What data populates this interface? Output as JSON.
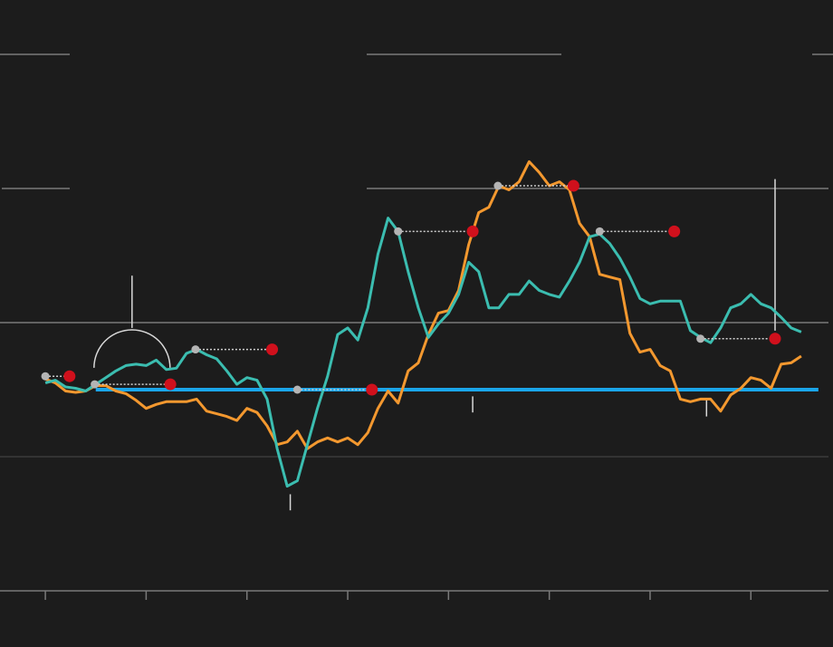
{
  "chart_data": {
    "type": "line",
    "xlim": [
      -4.5,
      77.7
    ],
    "ylim": [
      -1,
      3
    ],
    "xticks": [
      0,
      10,
      20,
      30,
      40,
      50,
      60,
      70
    ],
    "yticks": [
      -1,
      0,
      1,
      2,
      3
    ],
    "grid": true,
    "x": [
      0,
      1,
      2,
      3,
      4,
      5,
      6,
      7,
      8,
      9,
      10,
      11,
      12,
      13,
      14,
      15,
      16,
      17,
      18,
      19,
      20,
      21,
      22,
      23,
      24,
      25,
      26,
      27,
      28,
      29,
      30,
      31,
      32,
      33,
      34,
      35,
      36,
      37,
      38,
      39,
      40,
      41,
      42,
      43,
      44,
      45,
      46,
      47,
      48,
      49,
      50,
      51,
      52,
      53,
      54,
      55,
      56,
      57,
      58,
      59,
      60,
      61,
      62,
      63,
      64,
      65,
      66,
      67,
      68,
      69,
      70,
      71,
      72,
      73,
      74,
      75
    ],
    "series": [
      {
        "color": "#f3982f",
        "values": [
          0.58,
          0.55,
          0.49,
          0.48,
          0.49,
          0.53,
          0.53,
          0.49,
          0.47,
          0.42,
          0.36,
          0.39,
          0.41,
          0.41,
          0.41,
          0.43,
          0.34,
          0.32,
          0.3,
          0.27,
          0.36,
          0.33,
          0.23,
          0.09,
          0.11,
          0.19,
          0.06,
          0.11,
          0.14,
          0.11,
          0.14,
          0.09,
          0.18,
          0.36,
          0.49,
          0.4,
          0.64,
          0.7,
          0.91,
          1.07,
          1.09,
          1.24,
          1.58,
          1.82,
          1.86,
          2.02,
          1.99,
          2.05,
          2.2,
          2.12,
          2.02,
          2.05,
          1.99,
          1.74,
          1.64,
          1.36,
          1.34,
          1.32,
          0.92,
          0.78,
          0.8,
          0.68,
          0.64,
          0.43,
          0.41,
          0.43,
          0.43,
          0.34,
          0.46,
          0.51,
          0.59,
          0.57,
          0.51,
          0.69,
          0.7,
          0.75
        ]
      },
      {
        "color": "#3bbdb0",
        "values": [
          0.55,
          0.57,
          0.52,
          0.51,
          0.49,
          0.54,
          0.59,
          0.64,
          0.68,
          0.69,
          0.68,
          0.72,
          0.65,
          0.66,
          0.77,
          0.8,
          0.76,
          0.73,
          0.64,
          0.54,
          0.59,
          0.57,
          0.43,
          0.06,
          -0.22,
          -0.18,
          0.09,
          0.36,
          0.6,
          0.91,
          0.96,
          0.87,
          1.11,
          1.51,
          1.78,
          1.68,
          1.38,
          1.11,
          0.89,
          0.99,
          1.07,
          1.21,
          1.45,
          1.38,
          1.11,
          1.11,
          1.21,
          1.21,
          1.31,
          1.24,
          1.21,
          1.19,
          1.31,
          1.45,
          1.64,
          1.66,
          1.59,
          1.48,
          1.34,
          1.18,
          1.14,
          1.16,
          1.16,
          1.16,
          0.94,
          0.89,
          0.85,
          0.96,
          1.11,
          1.14,
          1.21,
          1.14,
          1.11,
          1.04,
          0.96,
          0.93
        ]
      }
    ],
    "hline": {
      "y": 0.5,
      "x": [
        5,
        76.7
      ],
      "color": "#1aa6ea"
    },
    "pairs": [
      {
        "y": 0.6,
        "x": [
          0,
          2.4
        ]
      },
      {
        "y": 0.54,
        "x": [
          4.9,
          12.4
        ]
      },
      {
        "y": 0.8,
        "x": [
          14.9,
          22.5
        ]
      },
      {
        "y": 0.5,
        "x": [
          25,
          32.4
        ]
      },
      {
        "y": 1.68,
        "x": [
          35,
          42.4
        ]
      },
      {
        "y": 2.02,
        "x": [
          44.9,
          52.4
        ]
      },
      {
        "y": 1.68,
        "x": [
          55,
          62.4
        ]
      },
      {
        "y": 0.88,
        "x": [
          65,
          72.4
        ]
      }
    ],
    "pair_colors": [
      "#b4b4b4",
      "#d0101c"
    ],
    "callouts": [
      {
        "x": 8.6,
        "y": [
          0.96,
          1.35
        ],
        "arc": true
      },
      {
        "x": 24.3,
        "y": [
          -0.4,
          -0.28
        ]
      },
      {
        "x": 42.4,
        "y": [
          0.33,
          0.45
        ]
      },
      {
        "x": 65.6,
        "y": [
          0.3,
          0.43
        ]
      },
      {
        "x": 72.4,
        "y": [
          0.94,
          2.07
        ]
      }
    ]
  }
}
